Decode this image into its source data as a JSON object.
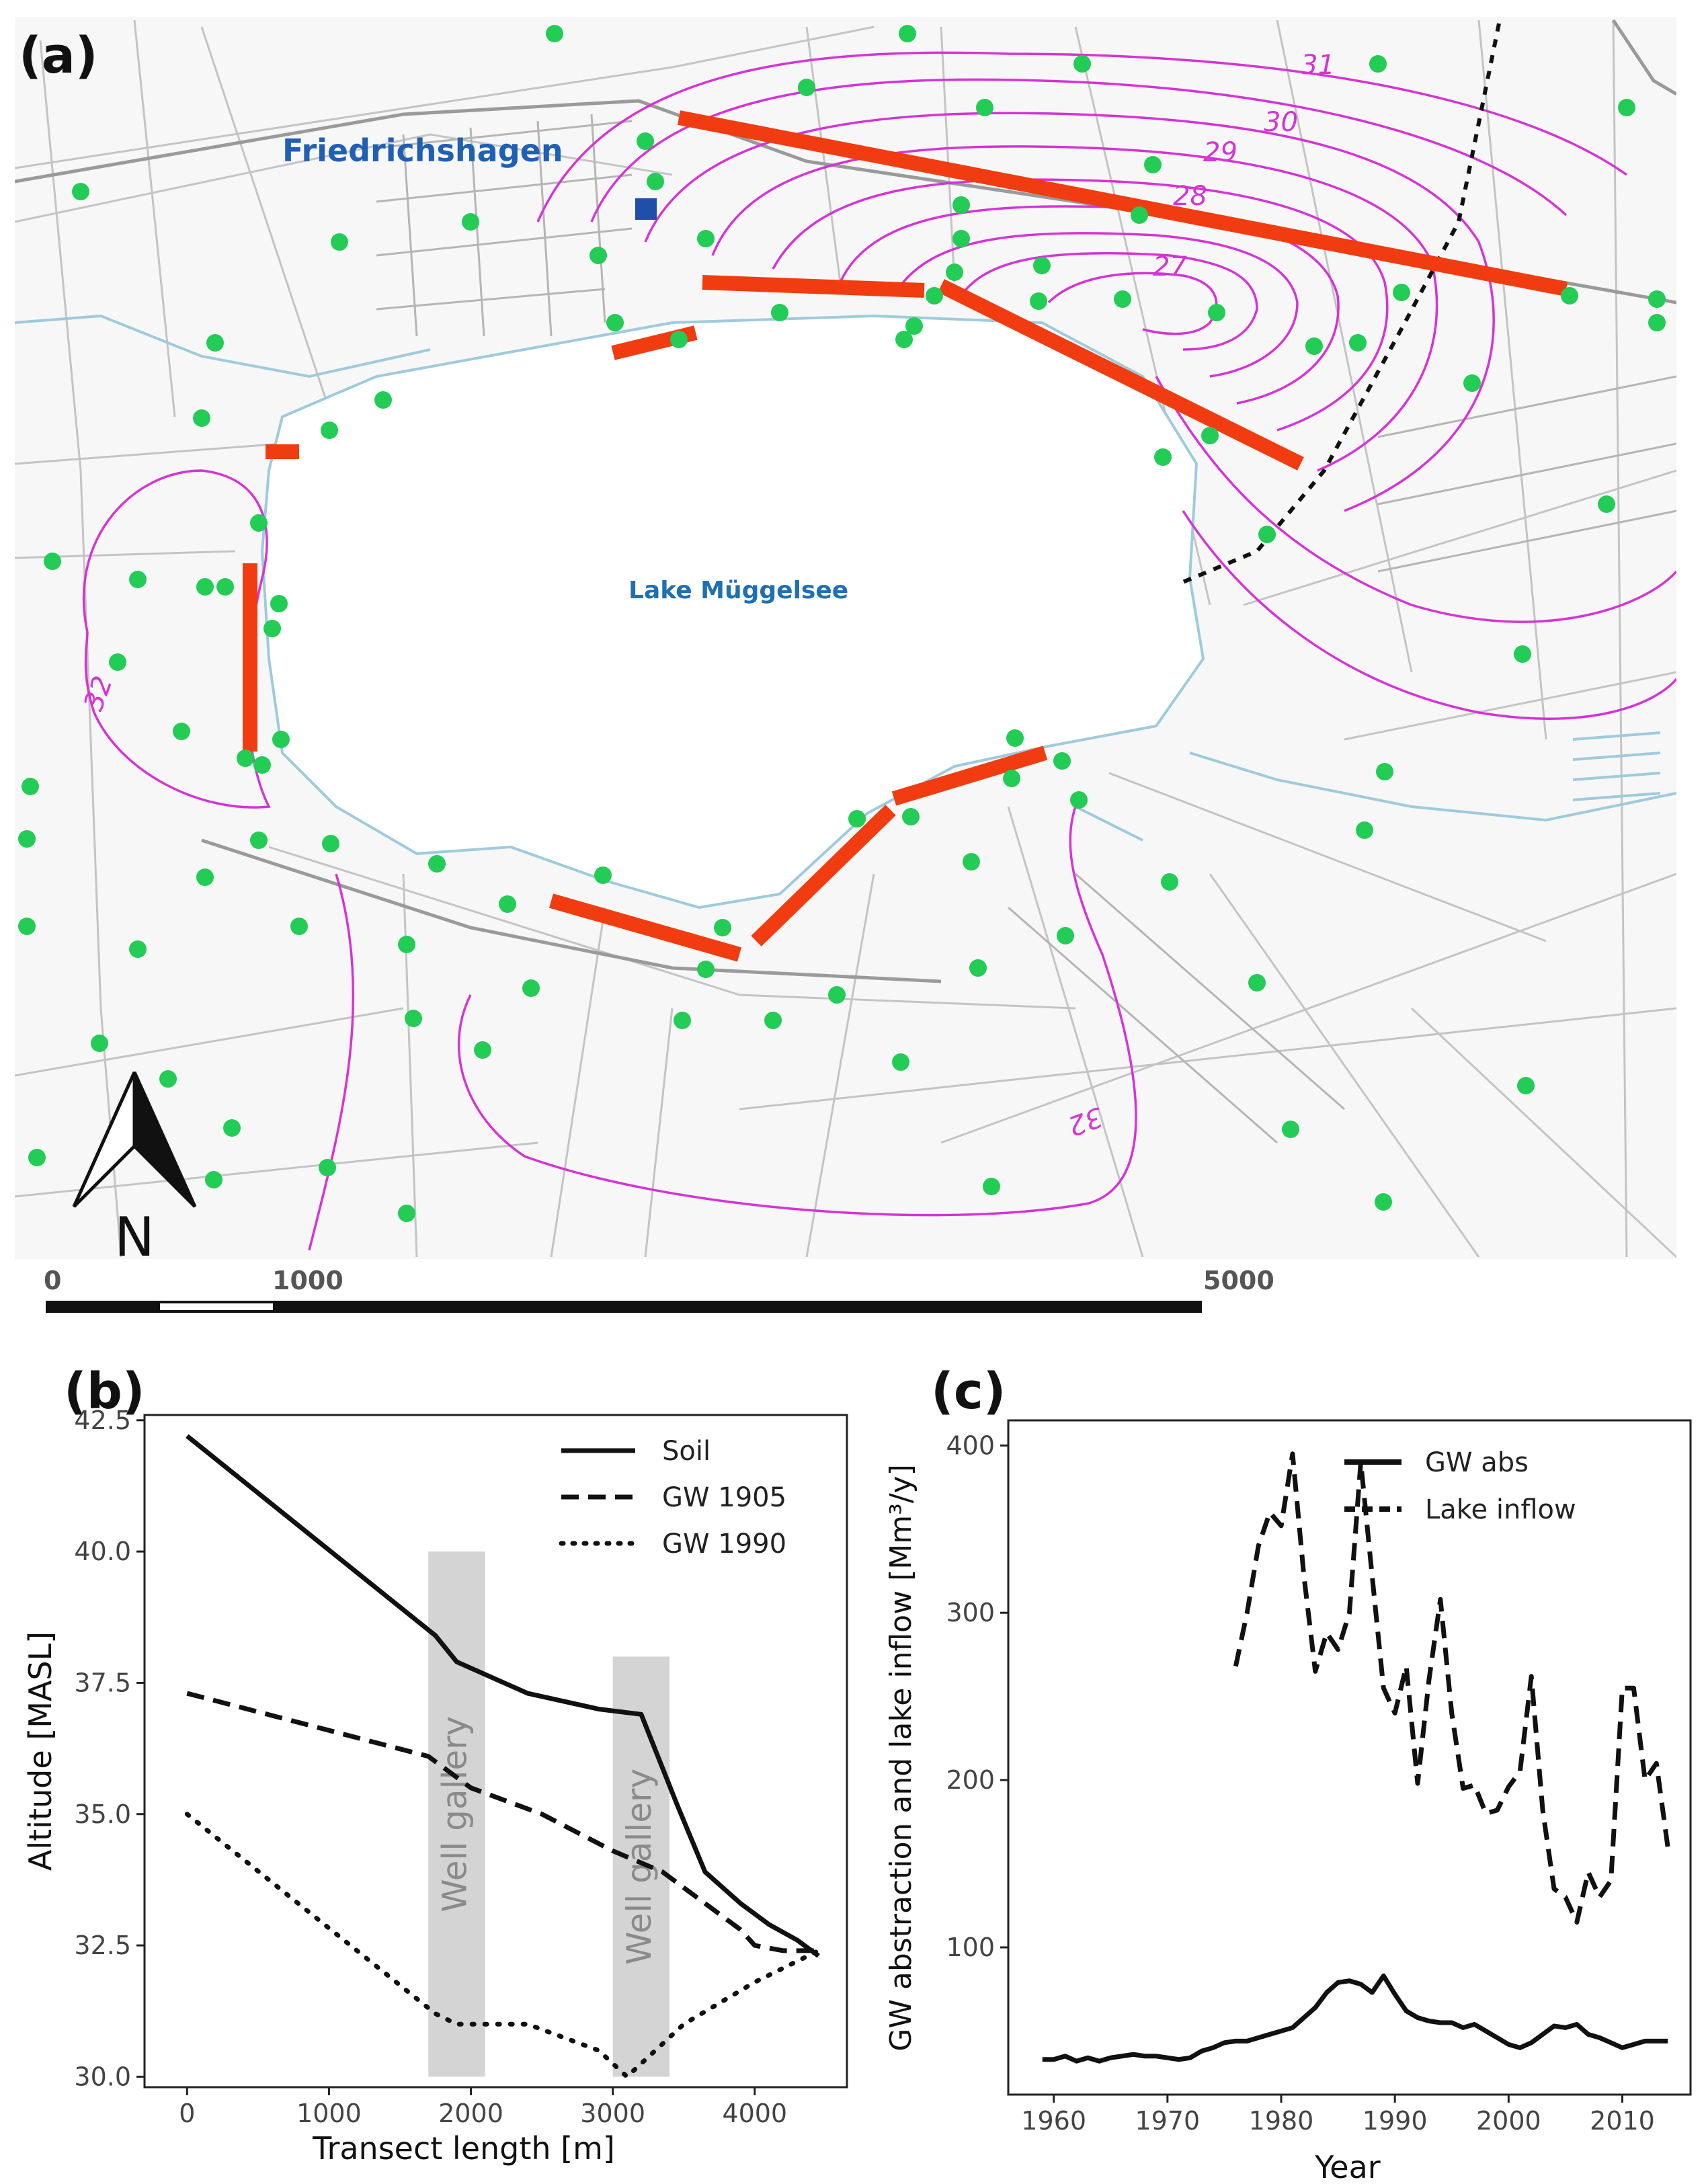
{
  "panel_a": {
    "label": "(a)",
    "town_label": "Friedrichshagen",
    "lake_label": "Lake Müggelsee",
    "north_label": "N",
    "contour_labels": [
      "31",
      "30",
      "29",
      "28",
      "27",
      "32",
      "32"
    ],
    "scale_labels": [
      "0",
      "1000",
      "5000"
    ],
    "colors": {
      "contour": "#d633d6",
      "transect": "#f03c10",
      "well": "#22cc55",
      "water": "#9ecbdc",
      "road": "#bbbbbb",
      "marker": "#1f4fa8"
    }
  },
  "panel_b": {
    "label": "(b)",
    "chart_data": {
      "type": "line",
      "xlabel": "Transect length [m]",
      "ylabel": "Altitude [MASL]",
      "xlim": [
        -300,
        4650
      ],
      "ylim": [
        29.8,
        42.6
      ],
      "xticks": [
        0,
        1000,
        2000,
        3000,
        4000
      ],
      "yticks": [
        30.0,
        32.5,
        35.0,
        37.5,
        40.0,
        42.5
      ],
      "ytick_labels": [
        "30.0",
        "32.5",
        "35.0",
        "37.5",
        "40.0",
        "42.5"
      ],
      "series": [
        {
          "name": "Soil",
          "style": "solid",
          "x": [
            0,
            1750,
            1900,
            2400,
            2900,
            3200,
            3450,
            3650,
            3900,
            4100,
            4300,
            4450
          ],
          "y": [
            42.2,
            38.4,
            37.9,
            37.3,
            37.0,
            36.9,
            35.2,
            33.9,
            33.3,
            32.9,
            32.6,
            32.3
          ]
        },
        {
          "name": "GW 1905",
          "style": "dashed",
          "x": [
            0,
            1700,
            2000,
            2500,
            3000,
            3350,
            3650,
            3900,
            4000,
            4200,
            4450
          ],
          "y": [
            37.3,
            36.1,
            35.5,
            35.0,
            34.3,
            33.9,
            33.3,
            32.8,
            32.5,
            32.4,
            32.4
          ]
        },
        {
          "name": "GW 1990",
          "style": "dotted",
          "x": [
            0,
            1750,
            1900,
            2400,
            2900,
            3100,
            3500,
            4000,
            4450
          ],
          "y": [
            35.0,
            31.2,
            31.0,
            31.0,
            30.5,
            30.0,
            31.0,
            31.8,
            32.4
          ]
        }
      ],
      "annotations": [
        {
          "text": "Well gallery",
          "x_range": [
            1700,
            2100
          ],
          "y_range": [
            30.0,
            40.0
          ]
        },
        {
          "text": "Well gallery",
          "x_range": [
            3000,
            3400
          ],
          "y_range": [
            30.0,
            38.0
          ]
        }
      ],
      "legend": "top-right"
    }
  },
  "panel_c": {
    "label": "(c)",
    "chart_data": {
      "type": "line",
      "xlabel": "Year",
      "ylabel": "GW abstraction and lake inflow [Mm³/y]",
      "xlim": [
        1956,
        2016
      ],
      "ylim": [
        12,
        415
      ],
      "xticks": [
        1960,
        1970,
        1980,
        1990,
        2000,
        2010
      ],
      "yticks": [
        100,
        200,
        300,
        400
      ],
      "series": [
        {
          "name": "GW abs",
          "style": "solid",
          "x": [
            1959,
            1960,
            1961,
            1962,
            1963,
            1964,
            1965,
            1966,
            1967,
            1968,
            1969,
            1970,
            1971,
            1972,
            1973,
            1974,
            1975,
            1976,
            1977,
            1978,
            1979,
            1980,
            1981,
            1982,
            1983,
            1984,
            1985,
            1986,
            1987,
            1988,
            1989,
            1990,
            1991,
            1992,
            1993,
            1994,
            1995,
            1996,
            1997,
            1998,
            1999,
            2000,
            2001,
            2002,
            2003,
            2004,
            2005,
            2006,
            2007,
            2008,
            2009,
            2010,
            2011,
            2012,
            2013,
            2014
          ],
          "y": [
            33,
            33,
            35,
            32,
            34,
            32,
            34,
            35,
            36,
            35,
            35,
            34,
            33,
            34,
            38,
            40,
            43,
            44,
            44,
            46,
            48,
            50,
            52,
            58,
            64,
            73,
            79,
            80,
            78,
            73,
            83,
            72,
            62,
            58,
            56,
            55,
            55,
            52,
            54,
            50,
            46,
            42,
            40,
            43,
            48,
            53,
            52,
            54,
            48,
            46,
            43,
            40,
            42,
            44,
            44,
            44
          ]
        },
        {
          "name": "Lake inflow",
          "style": "dashed",
          "x": [
            1976,
            1977,
            1978,
            1979,
            1980,
            1981,
            1982,
            1983,
            1984,
            1985,
            1986,
            1987,
            1988,
            1989,
            1990,
            1991,
            1992,
            1993,
            1994,
            1995,
            1996,
            1997,
            1998,
            1999,
            2000,
            2001,
            2002,
            2003,
            2004,
            2005,
            2006,
            2007,
            2008,
            2009,
            2010,
            2011,
            2012,
            2013,
            2014
          ],
          "y": [
            268,
            300,
            340,
            360,
            352,
            395,
            322,
            265,
            288,
            278,
            300,
            390,
            322,
            255,
            240,
            268,
            198,
            260,
            308,
            240,
            195,
            197,
            180,
            182,
            196,
            205,
            262,
            182,
            135,
            130,
            115,
            145,
            130,
            140,
            255,
            255,
            200,
            210,
            160
          ]
        }
      ],
      "legend": "top-right"
    }
  }
}
